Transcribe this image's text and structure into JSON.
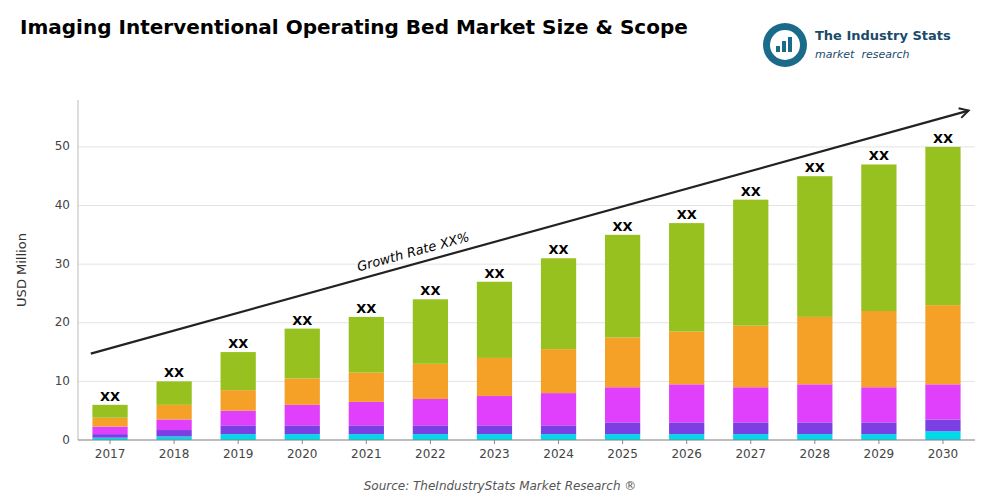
{
  "chart_data": {
    "type": "bar",
    "stacked": true,
    "title": "Imaging Interventional Operating Bed Market Size & Scope",
    "y_label": "USD Million",
    "categories": [
      2017,
      2018,
      2019,
      2020,
      2021,
      2022,
      2023,
      2024,
      2025,
      2026,
      2027,
      2028,
      2029,
      2030
    ],
    "series": [
      {
        "color": "#00d9e8",
        "values": [
          0.4,
          0.6,
          1.0,
          1.0,
          1.0,
          1.0,
          1.0,
          1.0,
          1.0,
          1.0,
          1.0,
          1.0,
          1.0,
          1.5
        ]
      },
      {
        "color": "#7b3fe4",
        "values": [
          0.6,
          1.1,
          1.5,
          1.5,
          1.5,
          1.5,
          1.5,
          1.5,
          2.0,
          2.0,
          2.0,
          2.0,
          2.0,
          2.0
        ]
      },
      {
        "color": "#e040fb",
        "values": [
          1.3,
          1.8,
          2.5,
          3.5,
          4.0,
          4.5,
          5.0,
          5.5,
          6.0,
          6.5,
          6.0,
          6.5,
          6.0,
          6.0
        ]
      },
      {
        "color": "#f5a128",
        "values": [
          1.5,
          2.5,
          3.5,
          4.5,
          5.0,
          6.0,
          6.5,
          7.5,
          8.5,
          9.0,
          10.5,
          11.5,
          13.0,
          13.5
        ]
      },
      {
        "color": "#96c11f",
        "values": [
          2.2,
          4.0,
          6.5,
          8.5,
          9.5,
          11.0,
          13.0,
          15.5,
          17.5,
          18.5,
          21.5,
          24.0,
          25.0,
          27.0
        ]
      }
    ],
    "ylim": [
      0,
      58
    ],
    "yticks": [
      0,
      10,
      20,
      30,
      40,
      50
    ],
    "grid": true,
    "annotations": [
      {
        "text": "XX",
        "category": 2017
      },
      {
        "text": "XX",
        "category": 2018
      },
      {
        "text": "XX",
        "category": 2019
      },
      {
        "text": "XX",
        "category": 2020
      },
      {
        "text": "XX",
        "category": 2021
      },
      {
        "text": "XX",
        "category": 2022
      },
      {
        "text": "XX",
        "category": 2023
      },
      {
        "text": "XX",
        "category": 2024
      },
      {
        "text": "XX",
        "category": 2025
      },
      {
        "text": "XX",
        "category": 2026
      },
      {
        "text": "XX",
        "category": 2027
      },
      {
        "text": "XX",
        "category": 2028
      },
      {
        "text": "XX",
        "category": 2029
      },
      {
        "text": "XX",
        "category": 2030
      },
      {
        "text": "Growth Rate XX%"
      }
    ],
    "source": "Source: TheIndustryStats Market Research ®",
    "logo": [
      "The Industry Stats",
      "market  research"
    ]
  }
}
